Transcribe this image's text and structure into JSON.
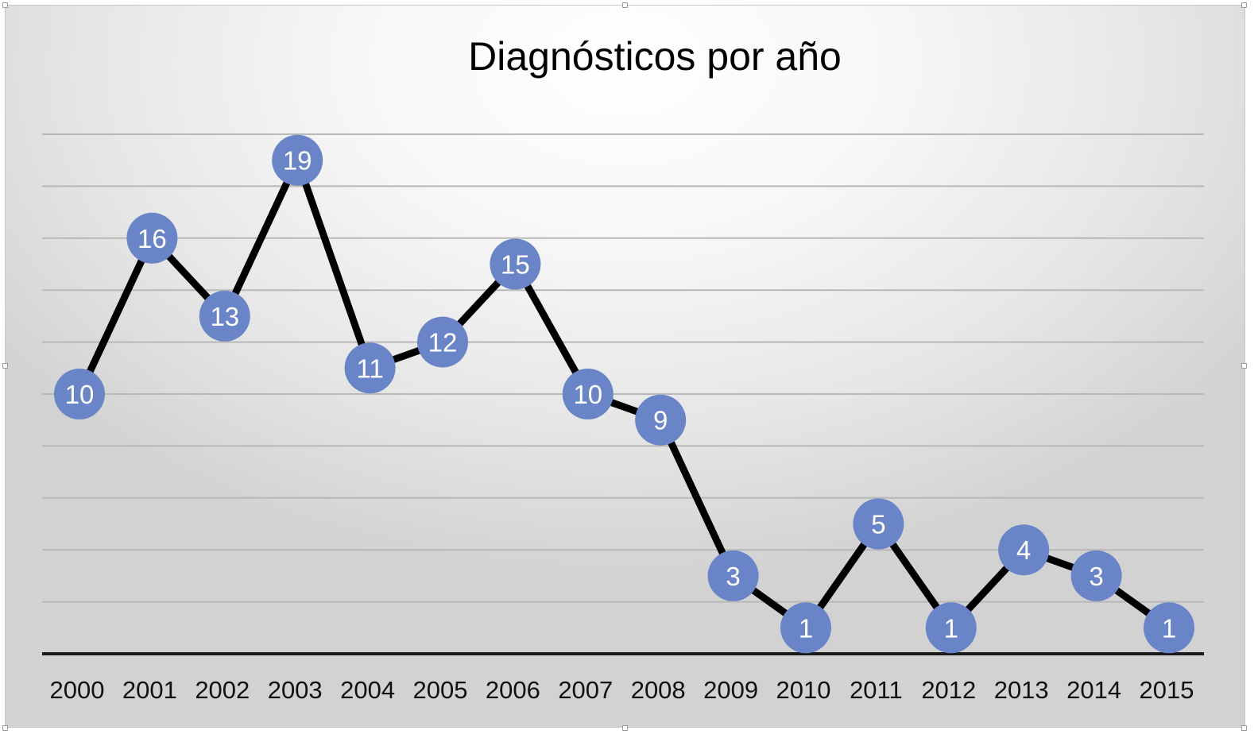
{
  "chart_data": {
    "type": "line",
    "title": "Diagnósticos por año",
    "xlabel": "",
    "ylabel": "",
    "categories": [
      "2000",
      "2001",
      "2002",
      "2003",
      "2004",
      "2005",
      "2006",
      "2007",
      "2008",
      "2009",
      "2010",
      "2011",
      "2012",
      "2013",
      "2014",
      "2015"
    ],
    "series": [
      {
        "values": [
          10,
          16,
          13,
          19,
          11,
          12,
          15,
          10,
          9,
          3,
          1,
          5,
          1,
          4,
          3,
          1
        ]
      }
    ],
    "ylim": [
      0,
      20
    ],
    "y_gridline_step": 2,
    "grid": true,
    "legend": "none",
    "data_labels": true,
    "colors": {
      "line": "#000000",
      "marker": "#6a84c8",
      "label_text": "#ffffff",
      "gridline": "#b8b8b8",
      "axis": "#1a1a1a"
    }
  }
}
